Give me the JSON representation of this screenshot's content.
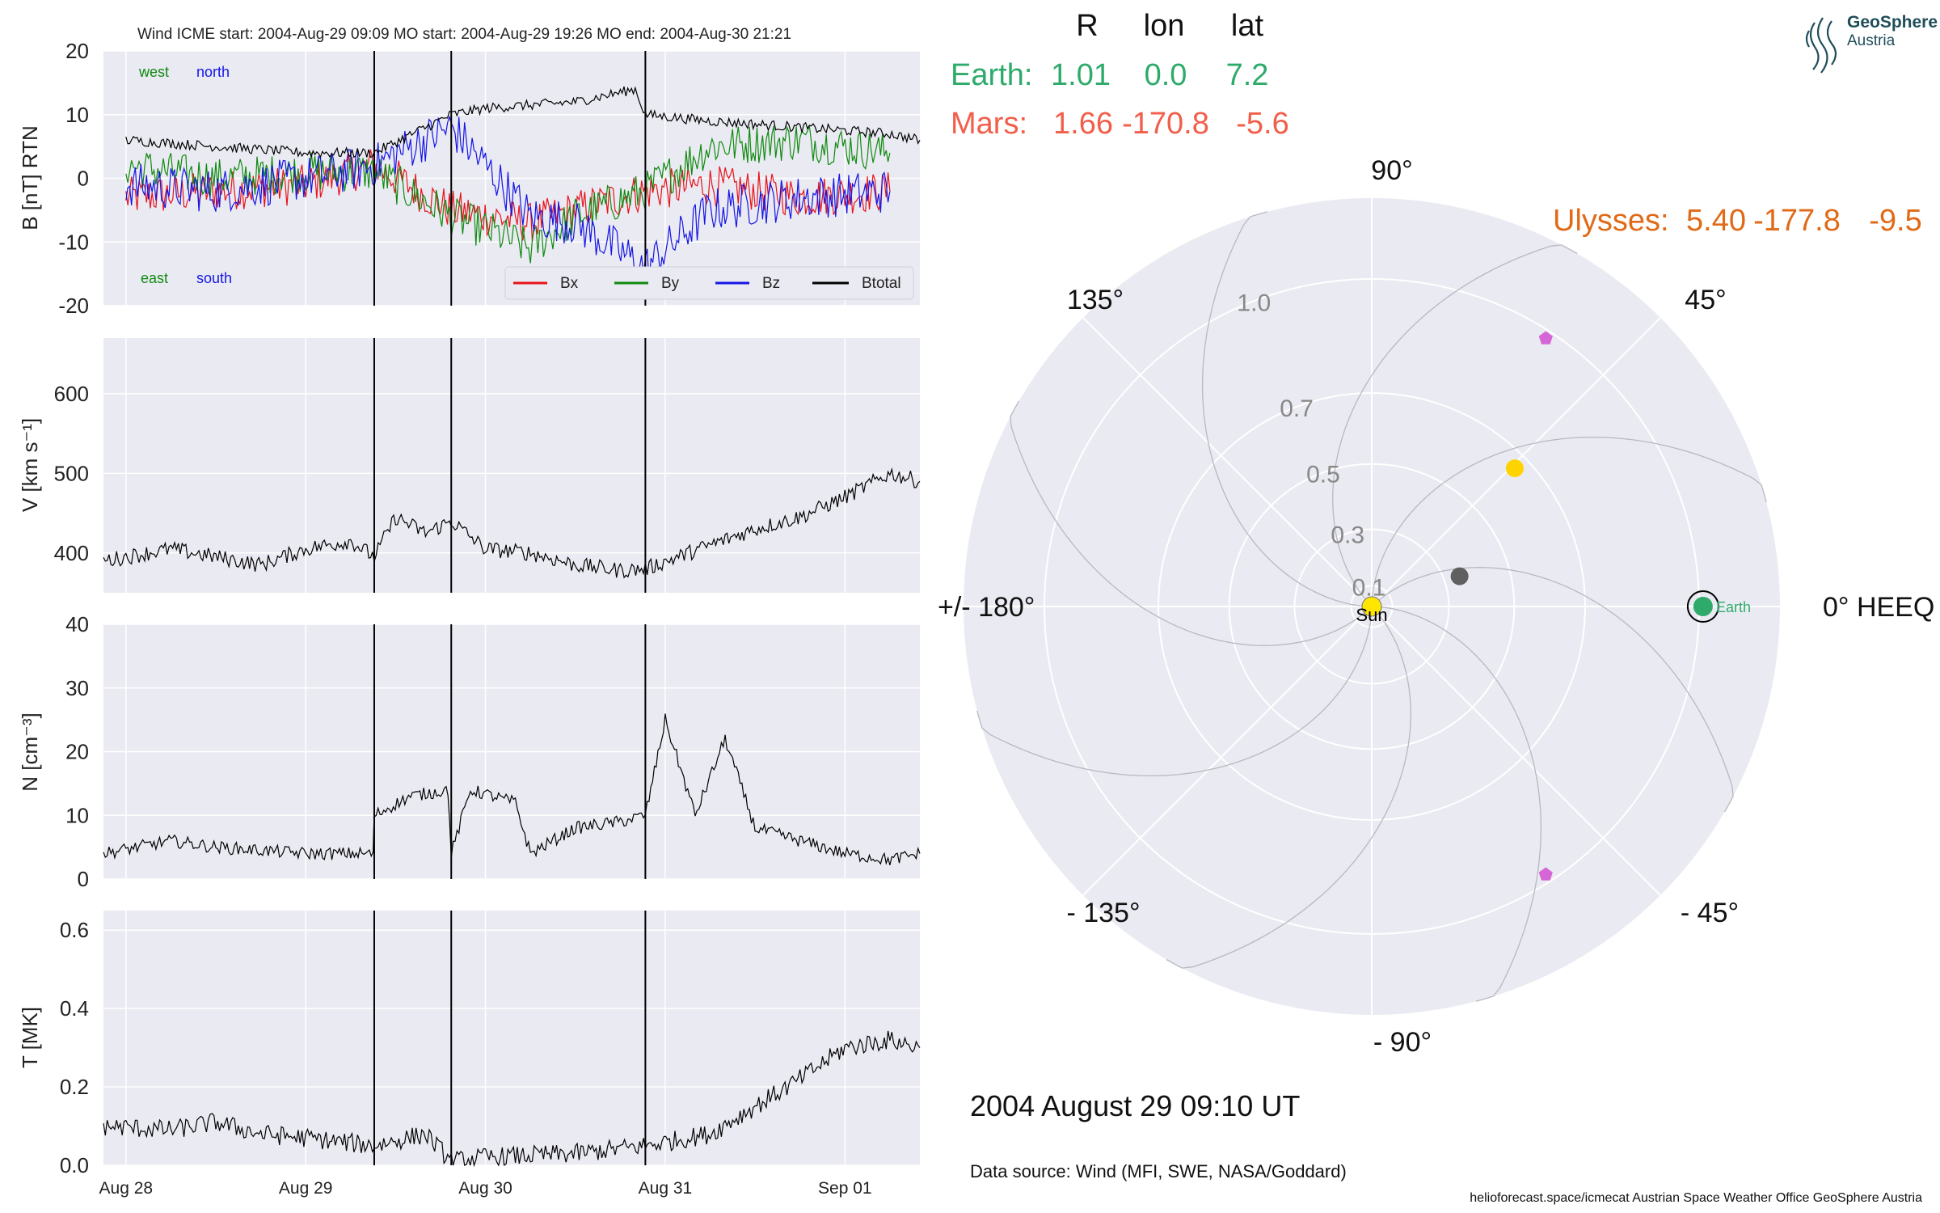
{
  "logo": {
    "line1": "GeoSphere",
    "line2": "Austria"
  },
  "chart_data": [
    {
      "type": "line",
      "title": "Wind    ICME start: 2004-Aug-29 09:09   MO start: 2004-Aug-29 19:26   MO end: 2004-Aug-30 21:21",
      "ylabel": "B [nT] RTN",
      "ylim": [
        -20,
        20
      ],
      "yticks": [
        -20,
        -10,
        0,
        10,
        20
      ],
      "x_unit": "days",
      "xlim": [
        "2004-08-27 21:00",
        "2004-09-01 10:00"
      ],
      "xticks": [
        {
          "label": "Aug 28",
          "x": "2004-08-28"
        },
        {
          "label": "Aug 29",
          "x": "2004-08-29"
        },
        {
          "label": "Aug 30",
          "x": "2004-08-30"
        },
        {
          "label": "Aug 31",
          "x": "2004-08-31"
        },
        {
          "label": "Sep 01",
          "x": "2004-09-01"
        }
      ],
      "event_lines": [
        "2004-08-29 09:09",
        "2004-08-29 19:26",
        "2004-08-30 21:21"
      ],
      "annotations": {
        "west": "west",
        "north": "north",
        "east": "east",
        "south": "south"
      },
      "legend": "bottom-right",
      "grid": true,
      "series": [
        {
          "name": "Bx",
          "color": "#e8131b",
          "x": [
            "2004-08-28 00:00",
            "2004-08-28 12:00",
            "2004-08-29 00:00",
            "2004-08-29 09:09",
            "2004-08-29 19:26",
            "2004-08-30 06:00",
            "2004-08-30 12:00",
            "2004-08-30 21:21",
            "2004-08-31 06:00",
            "2004-08-31 18:00",
            "2004-09-01 06:00"
          ],
          "y": [
            -3,
            -2,
            -1,
            2,
            -5,
            -7,
            -5,
            -2,
            -1,
            -3,
            -2
          ]
        },
        {
          "name": "By",
          "color": "#0f8a0f",
          "x": [
            "2004-08-28 00:00",
            "2004-08-28 12:00",
            "2004-08-29 00:00",
            "2004-08-29 09:09",
            "2004-08-29 19:26",
            "2004-08-30 00:00",
            "2004-08-30 06:00",
            "2004-08-30 12:00",
            "2004-08-30 21:21",
            "2004-08-31 06:00",
            "2004-08-31 18:00",
            "2004-09-01 06:00"
          ],
          "y": [
            2,
            0,
            1,
            1,
            -6,
            -8,
            -11,
            -6,
            -2,
            5,
            6,
            4
          ]
        },
        {
          "name": "Bz",
          "color": "#1515e6",
          "x": [
            "2004-08-28 00:00",
            "2004-08-28 12:00",
            "2004-08-29 00:00",
            "2004-08-29 09:09",
            "2004-08-29 14:00",
            "2004-08-29 19:26",
            "2004-08-30 00:00",
            "2004-08-30 06:00",
            "2004-08-30 12:00",
            "2004-08-30 21:21",
            "2004-08-31 06:00",
            "2004-08-31 18:00",
            "2004-09-01 06:00"
          ],
          "y": [
            -1,
            -2,
            0,
            2,
            5,
            8,
            2,
            -6,
            -7,
            -14,
            -5,
            -3,
            -2
          ]
        },
        {
          "name": "Btotal",
          "color": "#000000",
          "x": [
            "2004-08-28 00:00",
            "2004-08-28 12:00",
            "2004-08-29 00:00",
            "2004-08-29 09:09",
            "2004-08-29 19:26",
            "2004-08-30 00:00",
            "2004-08-30 12:00",
            "2004-08-30 20:00",
            "2004-08-30 21:21",
            "2004-08-31 06:00",
            "2004-08-31 18:00",
            "2004-09-01 06:00",
            "2004-09-01 10:00"
          ],
          "y": [
            6,
            5,
            4,
            4,
            10,
            11,
            12,
            14,
            10,
            9,
            8,
            7,
            6
          ]
        }
      ]
    },
    {
      "type": "line",
      "title": "",
      "ylabel": "V [km s⁻¹]",
      "ylim": [
        350,
        670
      ],
      "yticks": [
        400,
        500,
        600
      ],
      "event_lines": [
        "2004-08-29 09:09",
        "2004-08-29 19:26",
        "2004-08-30 21:21"
      ],
      "grid": true,
      "series": [
        {
          "name": "",
          "color": "#000000",
          "x": [
            "2004-08-27 21:00",
            "2004-08-28 06:00",
            "2004-08-28 12:00",
            "2004-08-28 18:00",
            "2004-08-29 00:00",
            "2004-08-29 06:00",
            "2004-08-29 09:09",
            "2004-08-29 12:00",
            "2004-08-29 16:00",
            "2004-08-29 19:26",
            "2004-08-30 00:00",
            "2004-08-30 06:00",
            "2004-08-30 12:00",
            "2004-08-30 18:00",
            "2004-08-30 21:21",
            "2004-08-31 06:00",
            "2004-08-31 12:00",
            "2004-08-31 18:00",
            "2004-09-01 00:00",
            "2004-09-01 06:00",
            "2004-09-01 10:00"
          ],
          "y": [
            390,
            405,
            395,
            385,
            405,
            415,
            395,
            445,
            425,
            440,
            405,
            400,
            385,
            378,
            380,
            410,
            430,
            445,
            470,
            500,
            490
          ]
        }
      ]
    },
    {
      "type": "line",
      "title": "",
      "ylabel": "N [cm⁻³]",
      "ylim": [
        0,
        40
      ],
      "yticks": [
        0,
        10,
        20,
        30,
        40
      ],
      "event_lines": [
        "2004-08-29 09:09",
        "2004-08-29 19:26",
        "2004-08-30 21:21"
      ],
      "grid": true,
      "series": [
        {
          "name": "",
          "color": "#000000",
          "x": [
            "2004-08-27 21:00",
            "2004-08-28 06:00",
            "2004-08-28 12:00",
            "2004-08-29 00:00",
            "2004-08-29 09:00",
            "2004-08-29 09:09",
            "2004-08-29 14:00",
            "2004-08-29 19:00",
            "2004-08-29 19:26",
            "2004-08-29 22:00",
            "2004-08-30 04:00",
            "2004-08-30 06:00",
            "2004-08-30 12:00",
            "2004-08-30 18:00",
            "2004-08-30 21:21",
            "2004-08-31 00:00",
            "2004-08-31 04:00",
            "2004-08-31 08:00",
            "2004-08-31 12:00",
            "2004-08-31 18:00",
            "2004-09-01 00:00",
            "2004-09-01 06:00",
            "2004-09-01 10:00"
          ],
          "y": [
            4,
            6,
            5,
            4,
            4,
            10,
            13,
            14,
            4,
            14,
            12,
            4,
            8,
            9,
            10,
            25,
            10,
            22,
            8,
            6,
            4,
            3,
            4
          ]
        }
      ]
    },
    {
      "type": "line",
      "title": "",
      "ylabel": "T [MK]",
      "ylim": [
        0,
        0.65
      ],
      "yticks": [
        0.0,
        0.2,
        0.4,
        0.6
      ],
      "event_lines": [
        "2004-08-29 09:09",
        "2004-08-29 19:26",
        "2004-08-30 21:21"
      ],
      "grid": true,
      "series": [
        {
          "name": "",
          "color": "#000000",
          "x": [
            "2004-08-27 21:00",
            "2004-08-28 06:00",
            "2004-08-28 12:00",
            "2004-08-28 18:00",
            "2004-08-29 00:00",
            "2004-08-29 09:09",
            "2004-08-29 16:00",
            "2004-08-29 19:26",
            "2004-08-30 00:00",
            "2004-08-30 12:00",
            "2004-08-30 21:21",
            "2004-08-31 06:00",
            "2004-08-31 12:00",
            "2004-08-31 18:00",
            "2004-09-01 00:00",
            "2004-09-01 06:00",
            "2004-09-01 10:00"
          ],
          "y": [
            0.1,
            0.09,
            0.11,
            0.08,
            0.07,
            0.05,
            0.08,
            0.01,
            0.02,
            0.03,
            0.05,
            0.08,
            0.15,
            0.22,
            0.3,
            0.32,
            0.3
          ]
        }
      ]
    },
    {
      "type": "scatter",
      "title": "",
      "projection": "polar",
      "theta_label_suffix": "HEEQ",
      "angle_labels": [
        "0° HEEQ",
        "45°",
        "90°",
        "135°",
        "+/- 180°",
        "- 135°",
        "- 90°",
        "- 45°"
      ],
      "r_ticks": [
        "0.1",
        "0.3",
        "0.5",
        "0.7",
        "1.0"
      ],
      "table": {
        "headers": [
          "R",
          "lon",
          "lat"
        ],
        "rows": [
          {
            "name": "Earth:",
            "R": "1.01",
            "lon": "0.0",
            "lat": "7.2",
            "color": "#2eaa6b"
          },
          {
            "name": "Mars:",
            "R": "1.66",
            "lon": "-170.8",
            "lat": "-5.6",
            "color": "#f25e4a"
          },
          {
            "name": "Ulysses:",
            "R": "5.40",
            "lon": "-177.8",
            "lat": "-9.5",
            "color": "#e06a17"
          }
        ]
      },
      "points": [
        {
          "name": "Sun",
          "r": 0.0,
          "lon": 0.0,
          "color": "#ffe600"
        },
        {
          "name": "Earth",
          "r": 1.01,
          "lon": 0.0,
          "color": "#2eaa6b"
        },
        {
          "name": "",
          "r": 0.35,
          "lon": 19.0,
          "color": "#606060"
        },
        {
          "name": "",
          "r": 0.66,
          "lon": 44.0,
          "color": "#ffd300"
        },
        {
          "name": "",
          "r": 0.98,
          "lon": 57.0,
          "color": "#d666d6"
        },
        {
          "name": "",
          "r": 0.98,
          "lon": -57.0,
          "color": "#d666d6"
        }
      ],
      "date_label": "2004 August 29  09:10 UT",
      "data_source": "Data source: Wind (MFI, SWE, NASA/Goddard)"
    }
  ],
  "footer": {
    "text": "helioforecast.space/icmecat   Austrian Space Weather Office   GeoSphere Austria"
  }
}
